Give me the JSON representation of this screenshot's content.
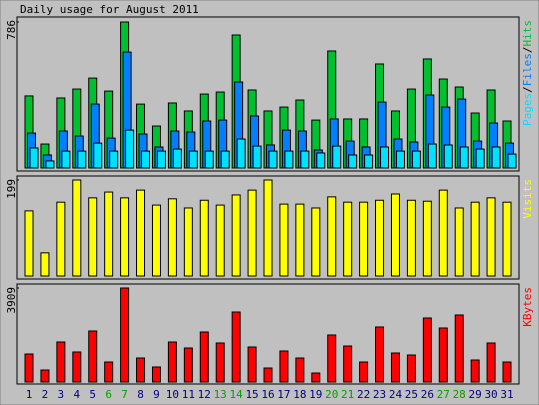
{
  "chart_data": [
    {
      "type": "bar",
      "title": "Daily usage for August 2011",
      "ylim": [
        0,
        786
      ],
      "yticks": [
        786
      ],
      "legend_separator": "/",
      "series": [
        {
          "name": "Pages",
          "color": "#00e0ff",
          "values": [
            108,
            38,
            91,
            91,
            134,
            91,
            204,
            91,
            91,
            102,
            91,
            91,
            91,
            156,
            118,
            91,
            91,
            91,
            81,
            118,
            70,
            70,
            113,
            91,
            91,
            129,
            124,
            113,
            102,
            113,
            75
          ]
        },
        {
          "name": "Files",
          "color": "#0080ff",
          "values": [
            188,
            70,
            199,
            172,
            344,
            161,
            624,
            183,
            113,
            199,
            194,
            253,
            258,
            463,
            280,
            124,
            204,
            199,
            97,
            264,
            145,
            113,
            355,
            156,
            140,
            393,
            328,
            371,
            145,
            242,
            134
          ]
        },
        {
          "name": "Hits",
          "color": "#00c030",
          "values": [
            388,
            129,
            377,
            425,
            484,
            414,
            786,
            344,
            226,
            350,
            307,
            398,
            409,
            716,
            420,
            307,
            328,
            366,
            258,
            630,
            264,
            264,
            560,
            307,
            425,
            587,
            479,
            436,
            296,
            420,
            253
          ]
        }
      ]
    },
    {
      "type": "bar",
      "ylim": [
        0,
        199
      ],
      "yticks": [
        199
      ],
      "series": [
        {
          "name": "Visits",
          "color": "#ffff00",
          "values": [
            135,
            48,
            153,
            199,
            162,
            174,
            162,
            178,
            147,
            160,
            141,
            157,
            147,
            168,
            178,
            199,
            149,
            149,
            141,
            164,
            153,
            153,
            157,
            170,
            157,
            155,
            178,
            141,
            153,
            162,
            153
          ]
        }
      ]
    },
    {
      "type": "bar",
      "ylim": [
        0,
        3909
      ],
      "yticks": [
        3909
      ],
      "categories": [
        "1",
        "2",
        "3",
        "4",
        "5",
        "6",
        "7",
        "8",
        "9",
        "10",
        "11",
        "12",
        "13",
        "14",
        "15",
        "16",
        "17",
        "18",
        "19",
        "20",
        "21",
        "22",
        "23",
        "24",
        "25",
        "26",
        "27",
        "28",
        "29",
        "30",
        "31"
      ],
      "category_colors": [
        "#000080",
        "#000080",
        "#000080",
        "#000080",
        "#000080",
        "#00a000",
        "#00a000",
        "#000080",
        "#000080",
        "#000080",
        "#000080",
        "#000080",
        "#00a000",
        "#00a000",
        "#000080",
        "#000080",
        "#000080",
        "#000080",
        "#000080",
        "#00a000",
        "#00a000",
        "#000080",
        "#000080",
        "#000080",
        "#000080",
        "#000080",
        "#00a000",
        "#00a000",
        "#000080",
        "#000080",
        "#000080"
      ],
      "series": [
        {
          "name": "KBytes",
          "color": "#ff0000",
          "values": [
            1165,
            499,
            1664,
            1248,
            2121,
            832,
            3909,
            998,
            624,
            1664,
            1414,
            2080,
            1622,
            2911,
            1456,
            582,
            1290,
            998,
            374,
            1955,
            1497,
            832,
            2288,
            1206,
            1123,
            2662,
            2246,
            2787,
            915,
            1622,
            832
          ]
        }
      ]
    }
  ]
}
